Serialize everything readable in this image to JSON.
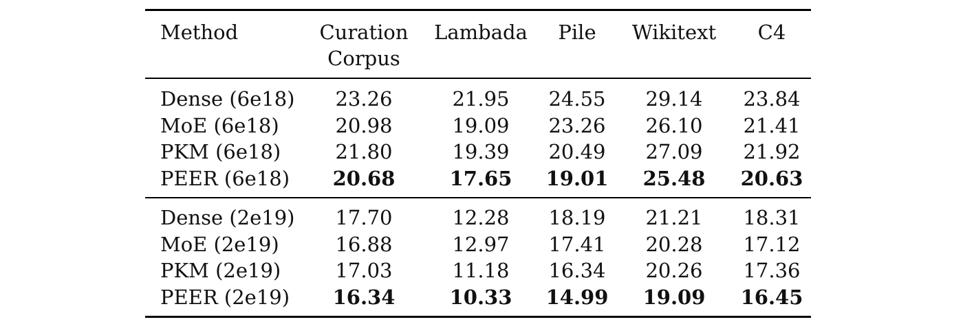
{
  "table": {
    "headers": [
      {
        "line1": "Method",
        "line2": ""
      },
      {
        "line1": "Curation",
        "line2": "Corpus"
      },
      {
        "line1": "Lambada",
        "line2": ""
      },
      {
        "line1": "Pile",
        "line2": ""
      },
      {
        "line1": "Wikitext",
        "line2": ""
      },
      {
        "line1": "C4",
        "line2": ""
      }
    ],
    "groups": [
      {
        "rows": [
          {
            "method": "Dense (6e18)",
            "values": [
              "23.26",
              "21.95",
              "24.55",
              "29.14",
              "23.84"
            ],
            "bold": false
          },
          {
            "method": "MoE (6e18)",
            "values": [
              "20.98",
              "19.09",
              "23.26",
              "26.10",
              "21.41"
            ],
            "bold": false
          },
          {
            "method": "PKM (6e18)",
            "values": [
              "21.80",
              "19.39",
              "20.49",
              "27.09",
              "21.92"
            ],
            "bold": false
          },
          {
            "method": "PEER (6e18)",
            "values": [
              "20.68",
              "17.65",
              "19.01",
              "25.48",
              "20.63"
            ],
            "bold": true
          }
        ]
      },
      {
        "rows": [
          {
            "method": "Dense (2e19)",
            "values": [
              "17.70",
              "12.28",
              "18.19",
              "21.21",
              "18.31"
            ],
            "bold": false
          },
          {
            "method": "MoE (2e19)",
            "values": [
              "16.88",
              "12.97",
              "17.41",
              "20.28",
              "17.12"
            ],
            "bold": false
          },
          {
            "method": "PKM (2e19)",
            "values": [
              "17.03",
              "11.18",
              "16.34",
              "20.26",
              "17.36"
            ],
            "bold": false
          },
          {
            "method": "PEER (2e19)",
            "values": [
              "16.34",
              "10.33",
              "14.99",
              "19.09",
              "16.45"
            ],
            "bold": true
          }
        ]
      }
    ]
  },
  "chart_data": {
    "type": "table",
    "columns": [
      "Method",
      "Curation Corpus",
      "Lambada",
      "Pile",
      "Wikitext",
      "C4"
    ],
    "rows": [
      [
        "Dense (6e18)",
        23.26,
        21.95,
        24.55,
        29.14,
        23.84
      ],
      [
        "MoE (6e18)",
        20.98,
        19.09,
        23.26,
        26.1,
        21.41
      ],
      [
        "PKM (6e18)",
        21.8,
        19.39,
        20.49,
        27.09,
        21.92
      ],
      [
        "PEER (6e18)",
        20.68,
        17.65,
        19.01,
        25.48,
        20.63
      ],
      [
        "Dense (2e19)",
        17.7,
        12.28,
        18.19,
        21.21,
        18.31
      ],
      [
        "MoE (2e19)",
        16.88,
        12.97,
        17.41,
        20.28,
        17.12
      ],
      [
        "PKM (2e19)",
        17.03,
        11.18,
        16.34,
        20.26,
        17.36
      ],
      [
        "PEER (2e19)",
        16.34,
        10.33,
        14.99,
        19.09,
        16.45
      ]
    ]
  }
}
